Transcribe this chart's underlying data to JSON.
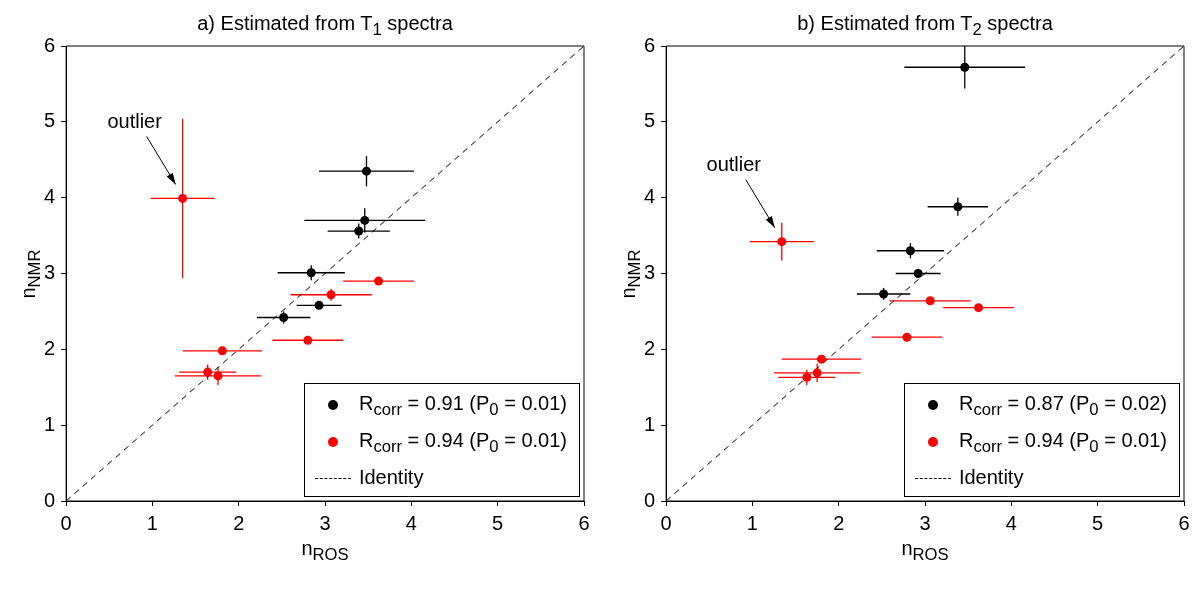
{
  "chart_data": [
    {
      "type": "scatter",
      "title": "a) Estimated from T$_{1}$ spectra",
      "xlabel": "n$_{ROS}$",
      "ylabel": "n$_{NMR}$",
      "xlim": [
        0,
        6
      ],
      "ylim": [
        0,
        6
      ],
      "xticks": [
        0,
        1,
        2,
        3,
        4,
        5,
        6
      ],
      "yticks": [
        0,
        1,
        2,
        3,
        4,
        5,
        6
      ],
      "grid": false,
      "legend": "bottom right",
      "marker": "circle",
      "annotations": [
        "outlier"
      ],
      "series": [
        {
          "name": "R$_{corr}$ = 0.91 (P$_{0}$ = 0.01)",
          "color": "#000000",
          "x": [
            3.48,
            3.46,
            3.39,
            2.84,
            2.93,
            2.52
          ],
          "values": [
            4.35,
            3.7,
            3.56,
            3.01,
            2.58,
            2.42
          ],
          "xerrors": [
            0.55,
            0.7,
            0.36,
            0.39,
            0.26,
            0.31
          ],
          "errors": [
            0.2,
            0.16,
            0.1,
            0.1,
            0.05,
            0.08
          ]
        },
        {
          "name": "R$_{corr}$ = 0.94 (P$_{0}$ = 0.01)",
          "color": "#ff0000",
          "x": [
            1.35,
            3.62,
            3.07,
            2.8,
            1.81,
            1.64,
            1.76
          ],
          "values": [
            3.99,
            2.9,
            2.72,
            2.12,
            1.98,
            1.7,
            1.65
          ],
          "xerrors": [
            0.37,
            0.41,
            0.47,
            0.41,
            0.46,
            0.33,
            0.5
          ],
          "errors": [
            1.05,
            0.05,
            0.08,
            0.05,
            0.05,
            0.1,
            0.12
          ]
        },
        {
          "name": "Identity",
          "type": "line",
          "color": "#000000",
          "marker": "none",
          "line_style": "dashed",
          "x": [
            0,
            6
          ],
          "values": [
            0,
            6
          ]
        }
      ]
    },
    {
      "type": "scatter",
      "title": "b) Estimated from T$_{2}$ spectra",
      "xlabel": "n$_{ROS}$",
      "ylabel": "n$_{NMR}$",
      "xlim": [
        0,
        6
      ],
      "ylim": [
        0,
        6
      ],
      "xticks": [
        0,
        1,
        2,
        3,
        4,
        5,
        6
      ],
      "yticks": [
        0,
        1,
        2,
        3,
        4,
        5,
        6
      ],
      "grid": false,
      "legend": "bottom right",
      "marker": "circle",
      "annotations": [
        "outlier"
      ],
      "series": [
        {
          "name": "R$_{corr}$ = 0.87 (P$_{0}$ = 0.02)",
          "color": "#000000",
          "x": [
            3.46,
            3.38,
            2.83,
            2.92,
            2.52
          ],
          "values": [
            5.72,
            3.88,
            3.3,
            3.0,
            2.73
          ],
          "xerrors": [
            0.7,
            0.35,
            0.39,
            0.26,
            0.31
          ],
          "errors": [
            0.28,
            0.12,
            0.1,
            0.05,
            0.08
          ]
        },
        {
          "name": "R$_{corr}$ = 0.94 (P$_{0}$ = 0.01)",
          "color": "#ff0000",
          "x": [
            1.34,
            3.06,
            3.62,
            2.79,
            1.8,
            1.75,
            1.63
          ],
          "values": [
            3.42,
            2.64,
            2.55,
            2.16,
            1.87,
            1.69,
            1.63
          ],
          "xerrors": [
            0.37,
            0.47,
            0.41,
            0.41,
            0.46,
            0.5,
            0.33
          ],
          "errors": [
            0.25,
            0.05,
            0.05,
            0.05,
            0.05,
            0.12,
            0.1
          ]
        },
        {
          "name": "Identity",
          "type": "line",
          "color": "#000000",
          "marker": "none",
          "line_style": "dashed",
          "x": [
            0,
            6
          ],
          "values": [
            0,
            6
          ]
        }
      ]
    }
  ]
}
